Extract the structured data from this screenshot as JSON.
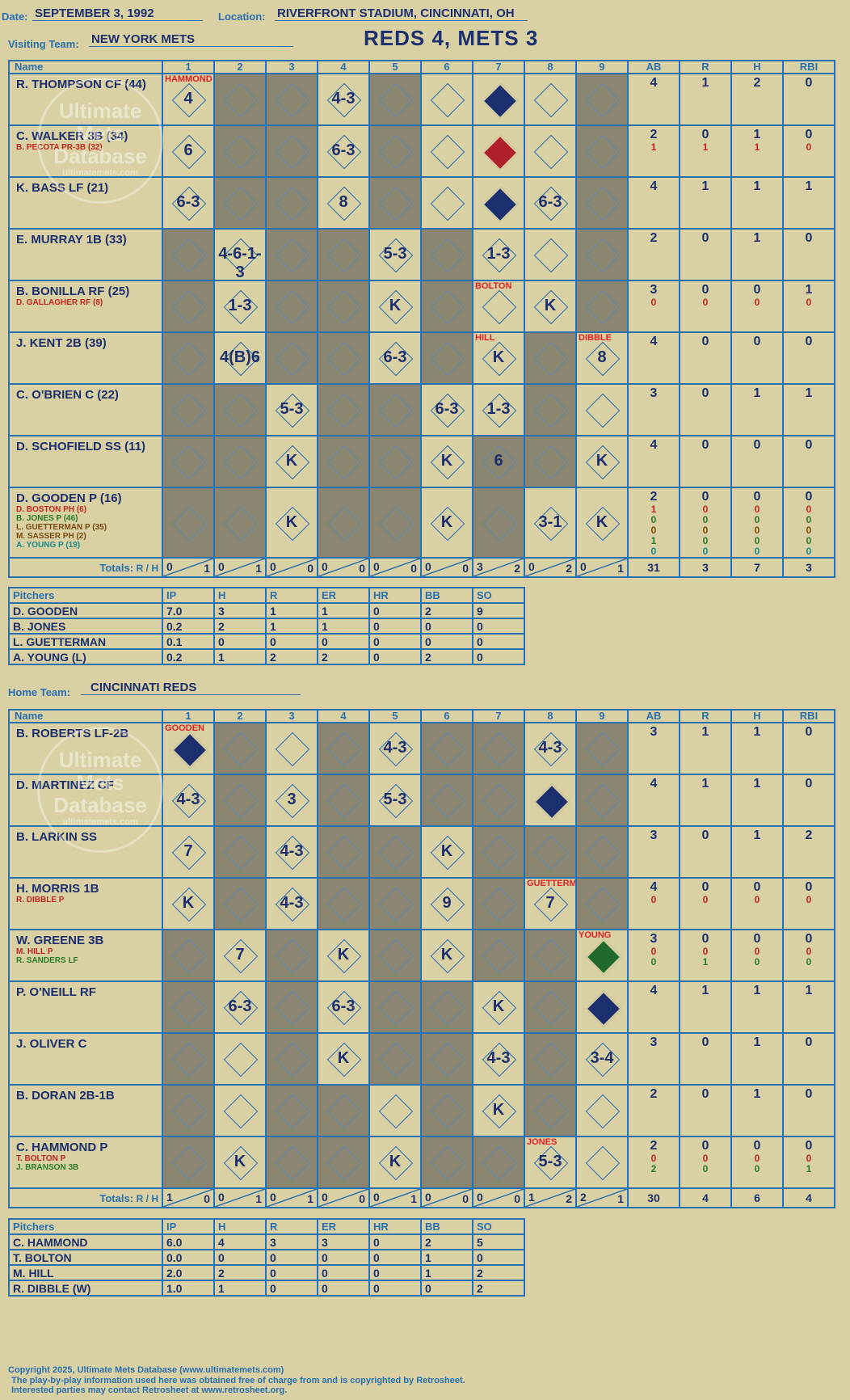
{
  "header": {
    "date_label": "Date:",
    "date": "SEPTEMBER 3, 1992",
    "location_label": "Location:",
    "location": "RIVERFRONT STADIUM, CINCINNATI, OH",
    "visiting_label": "Visiting Team:",
    "visiting_team": "NEW YORK METS",
    "home_label": "Home Team:",
    "home_team": "CINCINNATI REDS",
    "score_title": "REDS 4, METS 3"
  },
  "watermark": {
    "text": "Ultimate Mets Database",
    "url": "ultimatemets.com"
  },
  "columns": {
    "name": "Name",
    "innings": [
      "1",
      "2",
      "3",
      "4",
      "5",
      "6",
      "7",
      "8",
      "9"
    ],
    "stats": [
      "AB",
      "R",
      "H",
      "RBI"
    ],
    "totals": "Totals:",
    "r": "R",
    "h": "H"
  },
  "visitors": {
    "rows": [
      {
        "name": "R. THOMPSON CF (44)",
        "subs": [],
        "stats": [
          [
            "4"
          ],
          [
            "1"
          ],
          [
            "2"
          ],
          [
            "0"
          ]
        ]
      },
      {
        "name": "C. WALKER 3B (34)",
        "subs": [
          {
            "t": "B. PECOTA PR-3B (32)",
            "c": "red"
          }
        ],
        "stats": [
          [
            "2",
            "1"
          ],
          [
            "0",
            "1"
          ],
          [
            "1",
            "1"
          ],
          [
            "0",
            "0"
          ]
        ]
      },
      {
        "name": "K. BASS LF (21)",
        "subs": [],
        "stats": [
          [
            "4"
          ],
          [
            "1"
          ],
          [
            "1"
          ],
          [
            "1"
          ]
        ]
      },
      {
        "name": "E. MURRAY 1B (33)",
        "subs": [],
        "stats": [
          [
            "2"
          ],
          [
            "0"
          ],
          [
            "1"
          ],
          [
            "0"
          ]
        ]
      },
      {
        "name": "B. BONILLA RF (25)",
        "subs": [
          {
            "t": "D. GALLAGHER RF (8)",
            "c": "red"
          }
        ],
        "stats": [
          [
            "3",
            "0"
          ],
          [
            "0",
            "0"
          ],
          [
            "0",
            "0"
          ],
          [
            "1",
            "0"
          ]
        ]
      },
      {
        "name": "J. KENT 2B (39)",
        "subs": [],
        "stats": [
          [
            "4"
          ],
          [
            "0"
          ],
          [
            "0"
          ],
          [
            "0"
          ]
        ]
      },
      {
        "name": "C. O'BRIEN C (22)",
        "subs": [],
        "stats": [
          [
            "3"
          ],
          [
            "0"
          ],
          [
            "1"
          ],
          [
            "1"
          ]
        ]
      },
      {
        "name": "D. SCHOFIELD SS (11)",
        "subs": [],
        "stats": [
          [
            "4"
          ],
          [
            "0"
          ],
          [
            "0"
          ],
          [
            "0"
          ]
        ]
      },
      {
        "name": "D. GOODEN P (16)",
        "subs": [
          {
            "t": "D. BOSTON PH (6)",
            "c": "red"
          },
          {
            "t": "B. JONES P (46)",
            "c": "green"
          },
          {
            "t": "L. GUETTERMAN P (35)",
            "c": "brown"
          },
          {
            "t": "M. SASSER PH (2)",
            "c": "brown"
          },
          {
            "t": "A. YOUNG P (19)",
            "c": "teal"
          }
        ],
        "stats": [
          [
            "2",
            "1",
            "0",
            "0",
            "1",
            "0"
          ],
          [
            "0",
            "0",
            "0",
            "0",
            "0",
            "0"
          ],
          [
            "0",
            "0",
            "0",
            "0",
            "0",
            "0"
          ],
          [
            "0",
            "0",
            "0",
            "0",
            "0",
            "0"
          ]
        ]
      }
    ],
    "plays": [
      [
        "4",
        "",
        "",
        "4-3",
        "",
        "",
        "",
        "",
        ""
      ],
      [
        "6",
        "",
        "",
        "6-3",
        "",
        "",
        "",
        "",
        ""
      ],
      [
        "6-3",
        "",
        "",
        "8",
        "",
        "",
        "",
        "6-3",
        ""
      ],
      [
        "",
        "4-6-1-3",
        "",
        "",
        "5-3",
        "",
        "1-3",
        "",
        ""
      ],
      [
        "",
        "1-3",
        "",
        "",
        "K",
        "",
        "",
        "K",
        ""
      ],
      [
        "",
        "4(B)6",
        "",
        "",
        "6-3",
        "",
        "K",
        "",
        "8"
      ],
      [
        "",
        "",
        "5-3",
        "",
        "",
        "6-3",
        "1-3",
        "",
        ""
      ],
      [
        "",
        "",
        "K",
        "",
        "",
        "K",
        "6",
        "",
        "K"
      ],
      [
        "",
        "",
        "K",
        "",
        "",
        "K",
        "",
        "3-1",
        "K"
      ]
    ],
    "totals": [
      [
        "0",
        "1"
      ],
      [
        "0",
        "1"
      ],
      [
        "0",
        "0"
      ],
      [
        "0",
        "0"
      ],
      [
        "0",
        "0"
      ],
      [
        "0",
        "0"
      ],
      [
        "3",
        "2"
      ],
      [
        "0",
        "2"
      ],
      [
        "0",
        "1"
      ]
    ],
    "total_stats": [
      "31",
      "3",
      "7",
      "3"
    ],
    "pitch_tags": {
      "0-0": "HAMMOND",
      "4-6": "BOLTON",
      "5-6": "HILL",
      "5-8": "DIBBLE"
    }
  },
  "home": {
    "rows": [
      {
        "name": "B. ROBERTS LF-2B",
        "subs": [],
        "stats": [
          [
            "3"
          ],
          [
            "1"
          ],
          [
            "1"
          ],
          [
            "0"
          ]
        ]
      },
      {
        "name": "D. MARTINEZ CF",
        "subs": [],
        "stats": [
          [
            "4"
          ],
          [
            "1"
          ],
          [
            "1"
          ],
          [
            "0"
          ]
        ]
      },
      {
        "name": "B. LARKIN SS",
        "subs": [],
        "stats": [
          [
            "3"
          ],
          [
            "0"
          ],
          [
            "1"
          ],
          [
            "2"
          ]
        ]
      },
      {
        "name": "H. MORRIS 1B",
        "subs": [
          {
            "t": "R. DIBBLE P",
            "c": "red"
          }
        ],
        "stats": [
          [
            "4",
            "0"
          ],
          [
            "0",
            "0"
          ],
          [
            "0",
            "0"
          ],
          [
            "0",
            "0"
          ]
        ]
      },
      {
        "name": "W. GREENE 3B",
        "subs": [
          {
            "t": "M. HILL P",
            "c": "red"
          },
          {
            "t": "R. SANDERS LF",
            "c": "green"
          }
        ],
        "stats": [
          [
            "3",
            "0",
            "0"
          ],
          [
            "0",
            "0",
            "1"
          ],
          [
            "0",
            "0",
            "0"
          ],
          [
            "0",
            "0",
            "0"
          ]
        ]
      },
      {
        "name": "P. O'NEILL RF",
        "subs": [],
        "stats": [
          [
            "4"
          ],
          [
            "1"
          ],
          [
            "1"
          ],
          [
            "1"
          ]
        ]
      },
      {
        "name": "J. OLIVER C",
        "subs": [],
        "stats": [
          [
            "3"
          ],
          [
            "0"
          ],
          [
            "1"
          ],
          [
            "0"
          ]
        ]
      },
      {
        "name": "B. DORAN 2B-1B",
        "subs": [],
        "stats": [
          [
            "2"
          ],
          [
            "0"
          ],
          [
            "1"
          ],
          [
            "0"
          ]
        ]
      },
      {
        "name": "C. HAMMOND P",
        "subs": [
          {
            "t": "T. BOLTON P",
            "c": "red"
          },
          {
            "t": "J. BRANSON 3B",
            "c": "green"
          }
        ],
        "stats": [
          [
            "2",
            "0",
            "2"
          ],
          [
            "0",
            "0",
            "0"
          ],
          [
            "0",
            "0",
            "0"
          ],
          [
            "0",
            "0",
            "1"
          ]
        ]
      }
    ],
    "plays": [
      [
        "",
        "",
        "",
        "",
        "4-3",
        "",
        "",
        "4-3",
        ""
      ],
      [
        "4-3",
        "",
        "3",
        "",
        "5-3",
        "",
        "",
        "",
        ""
      ],
      [
        "7",
        "",
        "4-3",
        "",
        "",
        "K",
        "",
        "",
        ""
      ],
      [
        "K",
        "",
        "4-3",
        "",
        "",
        "9",
        "",
        "7",
        ""
      ],
      [
        "",
        "7",
        "",
        "K",
        "",
        "K",
        "",
        "",
        ""
      ],
      [
        "",
        "6-3",
        "",
        "6-3",
        "",
        "",
        "K",
        "",
        ""
      ],
      [
        "",
        "",
        "",
        "K",
        "",
        "",
        "4-3",
        "",
        "3-4"
      ],
      [
        "",
        "",
        "",
        "",
        "",
        "",
        "K",
        "",
        ""
      ],
      [
        "",
        "K",
        "",
        "",
        "K",
        "",
        "",
        "5-3",
        ""
      ]
    ],
    "totals": [
      [
        "1",
        "0"
      ],
      [
        "0",
        "1"
      ],
      [
        "0",
        "1"
      ],
      [
        "0",
        "0"
      ],
      [
        "0",
        "1"
      ],
      [
        "0",
        "0"
      ],
      [
        "0",
        "0"
      ],
      [
        "1",
        "2"
      ],
      [
        "2",
        "1"
      ]
    ],
    "total_stats": [
      "30",
      "4",
      "6",
      "4"
    ],
    "pitch_tags": {
      "0-0": "GOODEN",
      "3-7": "GUETTERMAN",
      "4-8": "YOUNG",
      "8-7": "JONES"
    }
  },
  "pitchers_v": {
    "headers": [
      "Pitchers",
      "IP",
      "H",
      "R",
      "ER",
      "HR",
      "BB",
      "SO"
    ],
    "rows": [
      [
        "D. GOODEN",
        "7.0",
        "3",
        "1",
        "1",
        "0",
        "2",
        "9"
      ],
      [
        "B. JONES",
        "0.2",
        "2",
        "1",
        "1",
        "0",
        "0",
        "0"
      ],
      [
        "L. GUETTERMAN",
        "0.1",
        "0",
        "0",
        "0",
        "0",
        "0",
        "0"
      ],
      [
        "A. YOUNG (L)",
        "0.2",
        "1",
        "2",
        "2",
        "0",
        "2",
        "0"
      ]
    ]
  },
  "pitchers_h": {
    "headers": [
      "Pitchers",
      "IP",
      "H",
      "R",
      "ER",
      "HR",
      "BB",
      "SO"
    ],
    "rows": [
      [
        "C. HAMMOND",
        "6.0",
        "4",
        "3",
        "3",
        "0",
        "2",
        "5"
      ],
      [
        "T. BOLTON",
        "0.0",
        "0",
        "0",
        "0",
        "0",
        "1",
        "0"
      ],
      [
        "M. HILL",
        "2.0",
        "2",
        "0",
        "0",
        "0",
        "1",
        "2"
      ],
      [
        "R. DIBBLE (W)",
        "1.0",
        "1",
        "0",
        "0",
        "0",
        "0",
        "2"
      ]
    ]
  },
  "footer": {
    "line1": "Copyright 2025, Ultimate Mets Database (www.ultimatemets.com)",
    "line2": "The play-by-play information used here was obtained free of charge from and is copyrighted by Retrosheet.",
    "line3": "Interested parties may contact Retrosheet at www.retrosheet.org."
  }
}
